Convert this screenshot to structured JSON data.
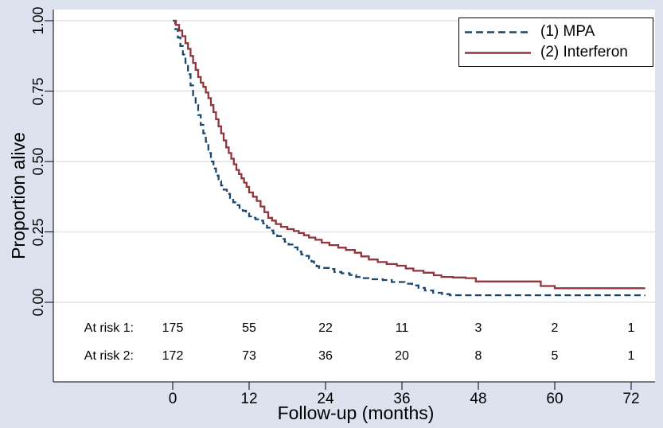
{
  "figure": {
    "background_color": "#dce2ee",
    "plot_background_color": "#ffffff",
    "grid_color": "#e7e9ee",
    "axis_color": "#000000",
    "text_color": "#000000"
  },
  "chart_data": {
    "type": "line",
    "subtype": "kaplan-meier-step-survival",
    "title": "",
    "xlabel": "Follow-up (months)",
    "ylabel": "Proportion alive",
    "x_ticks": [
      0,
      12,
      24,
      36,
      48,
      60,
      72
    ],
    "y_ticks": [
      "0.00",
      "0.25",
      "0.50",
      "0.75",
      "1.00"
    ],
    "xlim": [
      -18.75,
      75.75
    ],
    "ylim": [
      0.0,
      1.0
    ],
    "grid": "horizontal-only",
    "legend_position": "top-right-inside",
    "series": [
      {
        "name": "(1) MPA",
        "color": "#1a476f",
        "style": "dashed",
        "points": [
          [
            0,
            1
          ],
          [
            0.4,
            0.97
          ],
          [
            0.8,
            0.94
          ],
          [
            1.2,
            0.91
          ],
          [
            1.6,
            0.88
          ],
          [
            2,
            0.85
          ],
          [
            2.4,
            0.81
          ],
          [
            2.8,
            0.77
          ],
          [
            3.2,
            0.73
          ],
          [
            3.6,
            0.7
          ],
          [
            4,
            0.665
          ],
          [
            4.4,
            0.63
          ],
          [
            4.8,
            0.6
          ],
          [
            5.2,
            0.57
          ],
          [
            5.6,
            0.53
          ],
          [
            6,
            0.5
          ],
          [
            6.4,
            0.475
          ],
          [
            6.8,
            0.45
          ],
          [
            7.2,
            0.43
          ],
          [
            7.6,
            0.415
          ],
          [
            8,
            0.4
          ],
          [
            8.5,
            0.385
          ],
          [
            9,
            0.37
          ],
          [
            9.5,
            0.355
          ],
          [
            10,
            0.345
          ],
          [
            10.5,
            0.335
          ],
          [
            11,
            0.325
          ],
          [
            11.5,
            0.315
          ],
          [
            12,
            0.305
          ],
          [
            12.5,
            0.3
          ],
          [
            13,
            0.295
          ],
          [
            13.6,
            0.29
          ],
          [
            14.2,
            0.28
          ],
          [
            14.8,
            0.265
          ],
          [
            15.2,
            0.255
          ],
          [
            15.8,
            0.245
          ],
          [
            16.4,
            0.235
          ],
          [
            17,
            0.225
          ],
          [
            17.6,
            0.215
          ],
          [
            18.2,
            0.205
          ],
          [
            19,
            0.195
          ],
          [
            19.6,
            0.18
          ],
          [
            20.2,
            0.17
          ],
          [
            21,
            0.165
          ],
          [
            21.4,
            0.155
          ],
          [
            21.8,
            0.145
          ],
          [
            22.2,
            0.135
          ],
          [
            22.6,
            0.128
          ],
          [
            23,
            0.122
          ],
          [
            24.8,
            0.118
          ],
          [
            25.4,
            0.108
          ],
          [
            26.5,
            0.103
          ],
          [
            27.8,
            0.097
          ],
          [
            28.8,
            0.09
          ],
          [
            30,
            0.086
          ],
          [
            31,
            0.082
          ],
          [
            33,
            0.079
          ],
          [
            34.4,
            0.072
          ],
          [
            36.4,
            0.066
          ],
          [
            37.6,
            0.06
          ],
          [
            38.6,
            0.051
          ],
          [
            39.6,
            0.042
          ],
          [
            40.9,
            0.034
          ],
          [
            42.3,
            0.029
          ],
          [
            43.5,
            0.025
          ],
          [
            74.2,
            0.025
          ]
        ]
      },
      {
        "name": "(2) Interferon",
        "color": "#90353b",
        "style": "solid",
        "points": [
          [
            0,
            1
          ],
          [
            0.5,
            0.985
          ],
          [
            1,
            0.965
          ],
          [
            1.5,
            0.945
          ],
          [
            2,
            0.92
          ],
          [
            2.4,
            0.9
          ],
          [
            2.8,
            0.875
          ],
          [
            3.2,
            0.85
          ],
          [
            3.6,
            0.825
          ],
          [
            4,
            0.8
          ],
          [
            4.4,
            0.78
          ],
          [
            4.8,
            0.765
          ],
          [
            5.2,
            0.745
          ],
          [
            5.6,
            0.725
          ],
          [
            6,
            0.7
          ],
          [
            6.4,
            0.675
          ],
          [
            6.8,
            0.65
          ],
          [
            7.2,
            0.625
          ],
          [
            7.6,
            0.6
          ],
          [
            8,
            0.575
          ],
          [
            8.4,
            0.55
          ],
          [
            8.8,
            0.53
          ],
          [
            9.2,
            0.51
          ],
          [
            9.6,
            0.49
          ],
          [
            10,
            0.47
          ],
          [
            10.4,
            0.455
          ],
          [
            10.8,
            0.44
          ],
          [
            11.2,
            0.425
          ],
          [
            11.6,
            0.41
          ],
          [
            12,
            0.39
          ],
          [
            12.6,
            0.375
          ],
          [
            13.2,
            0.36
          ],
          [
            13.8,
            0.34
          ],
          [
            14.4,
            0.32
          ],
          [
            15,
            0.3
          ],
          [
            15.6,
            0.29
          ],
          [
            16.2,
            0.278
          ],
          [
            17,
            0.268
          ],
          [
            18,
            0.26
          ],
          [
            19,
            0.253
          ],
          [
            19.8,
            0.246
          ],
          [
            20.6,
            0.238
          ],
          [
            21.4,
            0.23
          ],
          [
            22.4,
            0.222
          ],
          [
            23.4,
            0.212
          ],
          [
            24.6,
            0.203
          ],
          [
            26,
            0.194
          ],
          [
            27.2,
            0.186
          ],
          [
            28.6,
            0.176
          ],
          [
            29.6,
            0.163
          ],
          [
            30.8,
            0.152
          ],
          [
            32.2,
            0.143
          ],
          [
            33.6,
            0.136
          ],
          [
            35.2,
            0.13
          ],
          [
            36.6,
            0.12
          ],
          [
            37.8,
            0.112
          ],
          [
            39.4,
            0.105
          ],
          [
            41,
            0.096
          ],
          [
            42.2,
            0.09
          ],
          [
            44,
            0.088
          ],
          [
            46,
            0.086
          ],
          [
            47.6,
            0.074
          ],
          [
            57.8,
            0.058
          ],
          [
            60,
            0.05
          ],
          [
            74.2,
            0.05
          ]
        ]
      }
    ],
    "at_risk_table": {
      "time_points": [
        0,
        12,
        24,
        36,
        48,
        60,
        72
      ],
      "rows": [
        {
          "label": "At risk 1:",
          "values": [
            "175",
            "55",
            "22",
            "11",
            "3",
            "2",
            "1"
          ]
        },
        {
          "label": "At risk 2:",
          "values": [
            "172",
            "73",
            "36",
            "20",
            "8",
            "5",
            "1"
          ]
        }
      ]
    }
  }
}
